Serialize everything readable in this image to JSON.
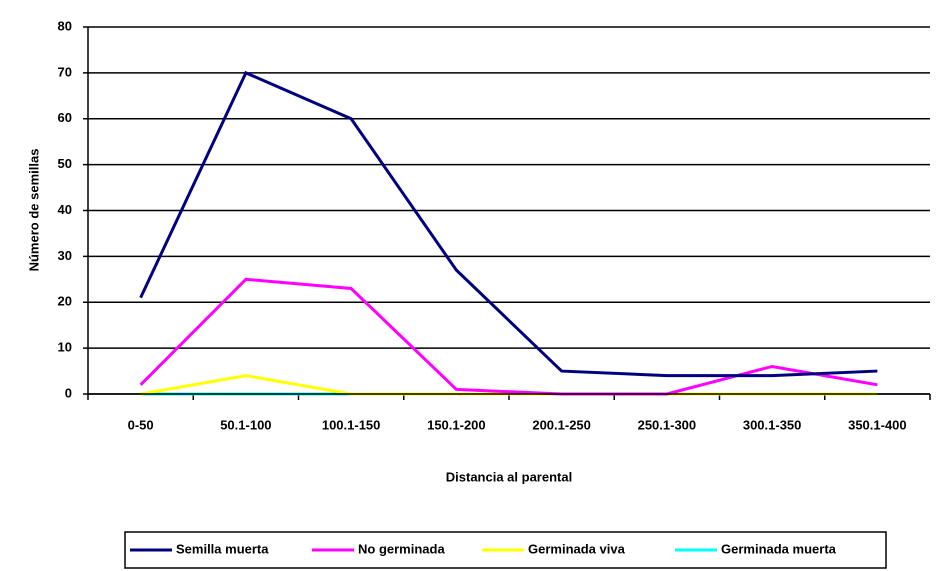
{
  "chart_data": {
    "type": "line",
    "y_label": "Número de semillas",
    "x_label": "Distancia al parental",
    "categories": [
      "0-50",
      "50.1-100",
      "100.1-150",
      "150.1-200",
      "200.1-250",
      "250.1-300",
      "300.1-350",
      "350.1-400"
    ],
    "series": [
      {
        "name": "Semilla muerta",
        "color": "#000080",
        "values": [
          21,
          70,
          60,
          27,
          5,
          4,
          4,
          5
        ]
      },
      {
        "name": "No germinada",
        "color": "#ff00ff",
        "values": [
          2,
          25,
          23,
          1,
          0,
          0,
          6,
          2
        ]
      },
      {
        "name": "Germinada viva",
        "color": "#ffff00",
        "values": [
          0,
          4,
          0,
          0,
          0,
          0,
          0,
          0
        ]
      },
      {
        "name": "Germinada muerta",
        "color": "#00ffff",
        "values": [
          0,
          0,
          0,
          0,
          0,
          0,
          0,
          0
        ]
      }
    ],
    "ylim": [
      0,
      80
    ],
    "yticks": [
      0,
      10,
      20,
      30,
      40,
      50,
      60,
      70,
      80
    ],
    "grid": true
  }
}
